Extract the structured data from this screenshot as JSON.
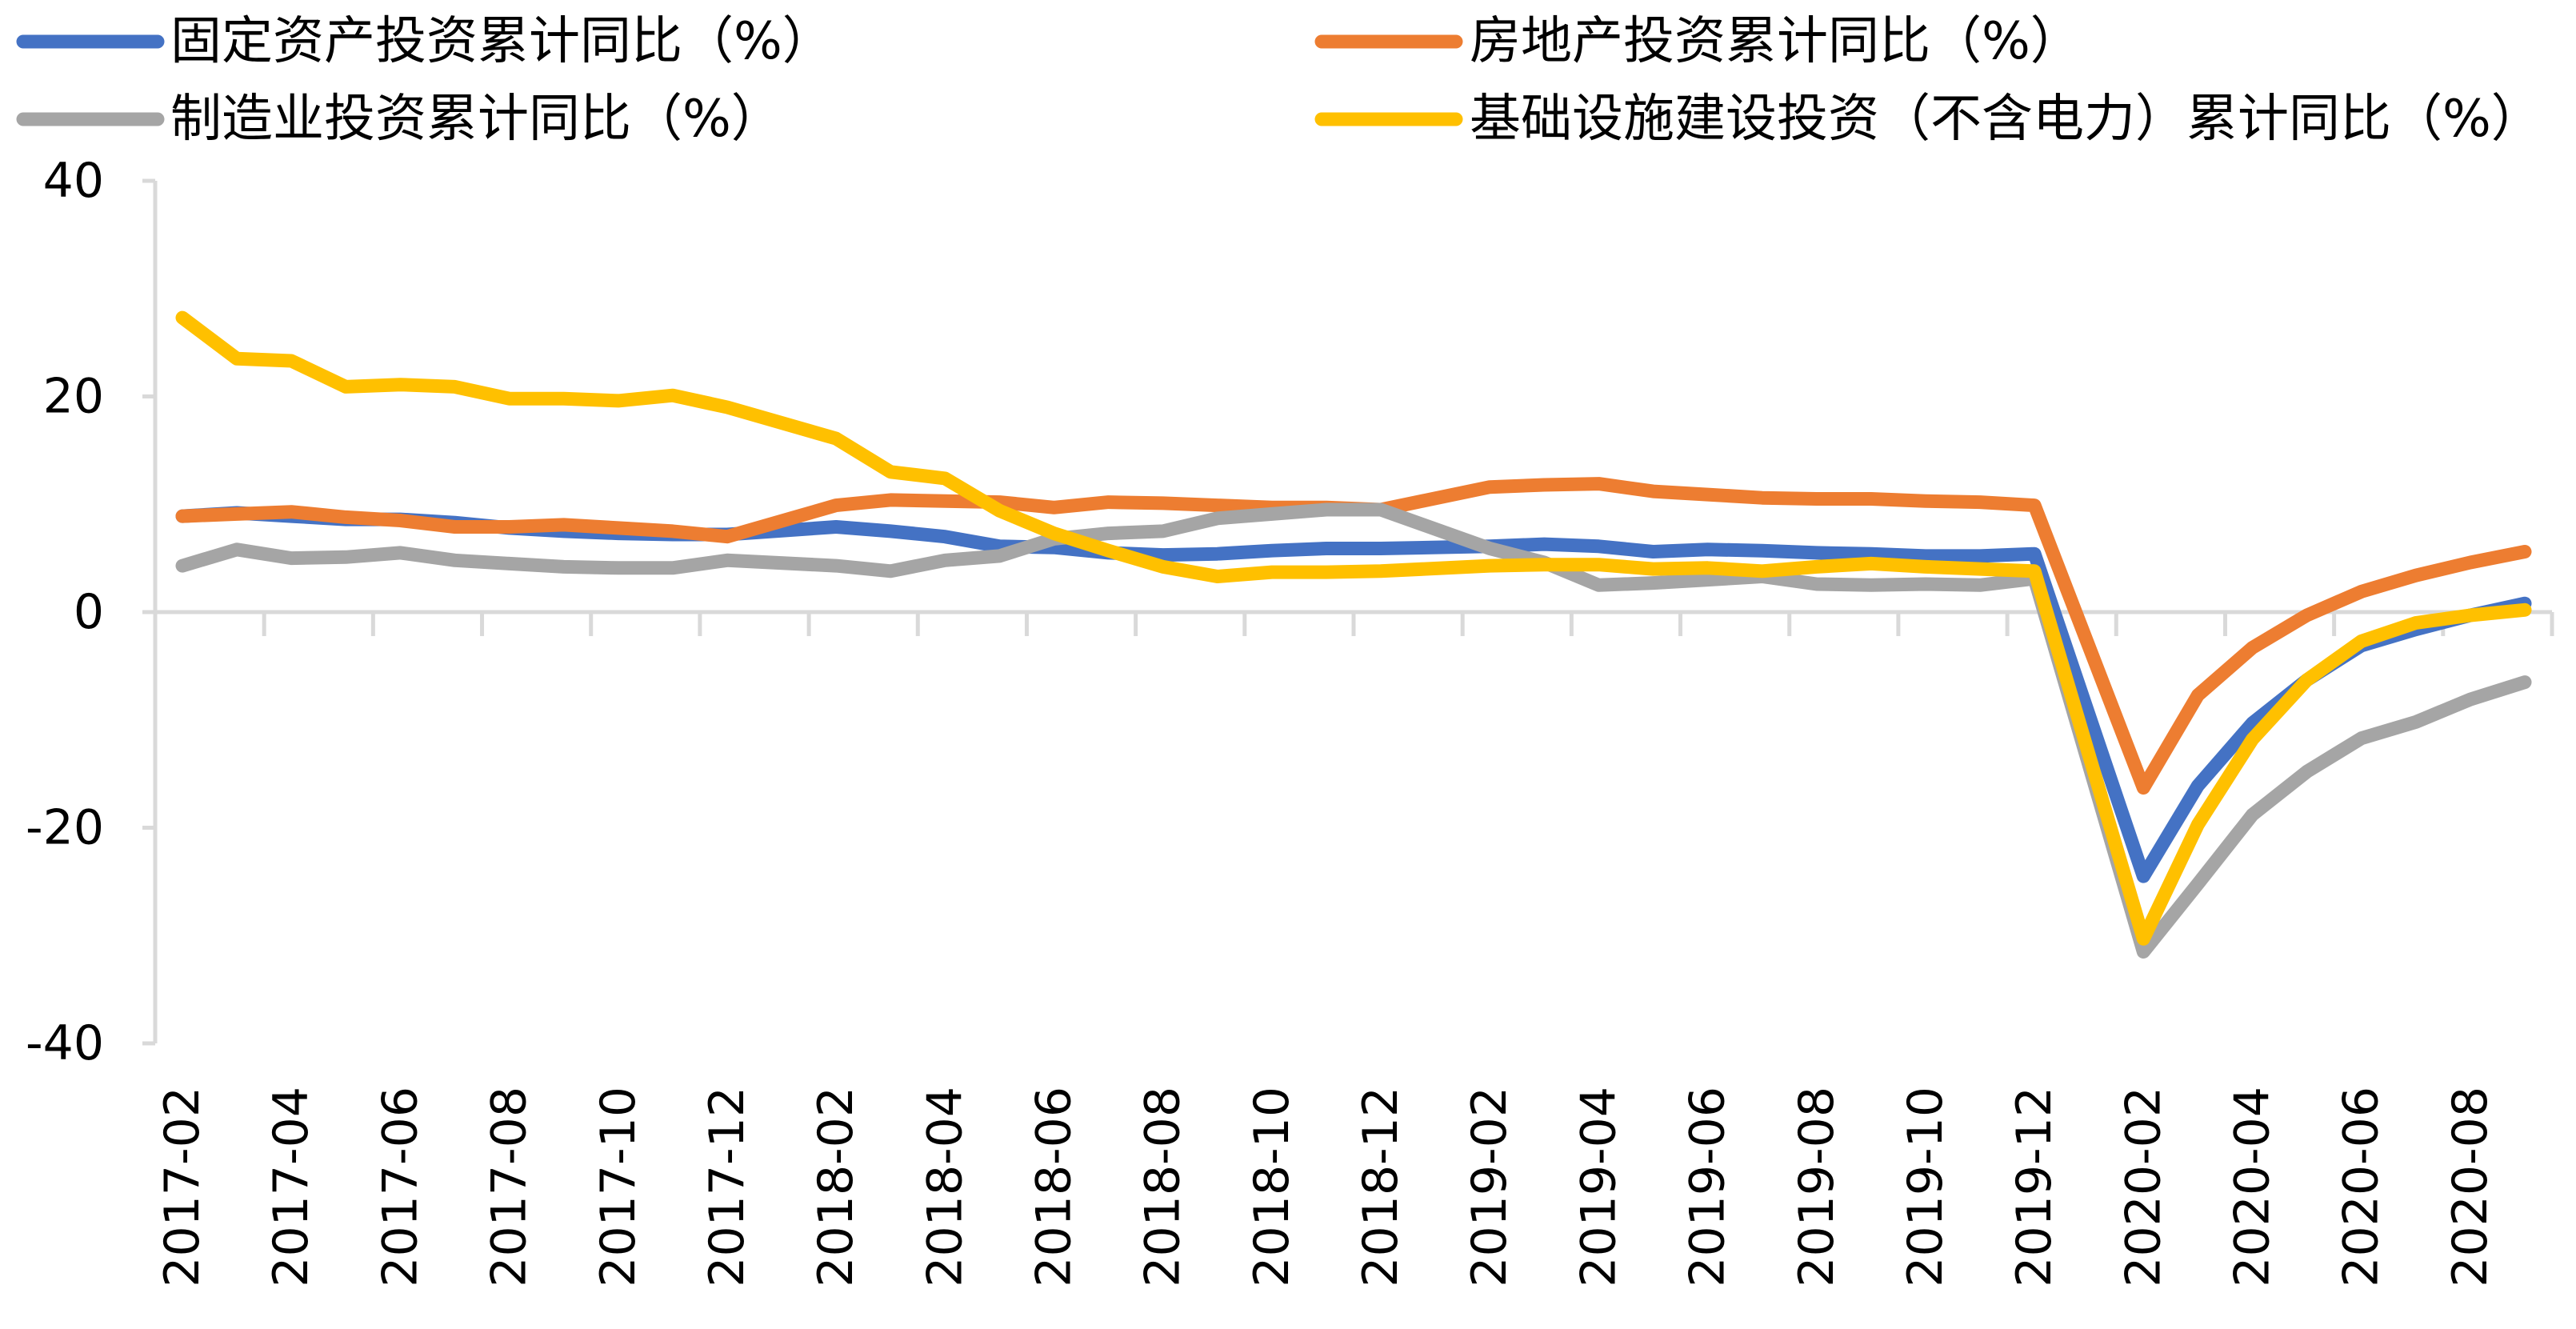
{
  "chart_data": {
    "type": "line",
    "title": "",
    "xlabel": "",
    "ylabel": "",
    "ylim": [
      -40,
      40
    ],
    "yticks": [
      40,
      20,
      0,
      -20,
      -40
    ],
    "grid": false,
    "legend_position": "top",
    "x": [
      "2017-02",
      "2017-03",
      "2017-04",
      "2017-05",
      "2017-06",
      "2017-07",
      "2017-08",
      "2017-09",
      "2017-10",
      "2017-11",
      "2017-12",
      "2018-01",
      "2018-02",
      "2018-03",
      "2018-04",
      "2018-05",
      "2018-06",
      "2018-07",
      "2018-08",
      "2018-09",
      "2018-10",
      "2018-11",
      "2018-12",
      "2019-01",
      "2019-02",
      "2019-03",
      "2019-04",
      "2019-05",
      "2019-06",
      "2019-07",
      "2019-08",
      "2019-09",
      "2019-10",
      "2019-11",
      "2019-12",
      "2020-01",
      "2020-02",
      "2020-03",
      "2020-04",
      "2020-05",
      "2020-06",
      "2020-07",
      "2020-08",
      "2020-09"
    ],
    "xtick_labels": [
      "2017-02",
      "2017-04",
      "2017-06",
      "2017-08",
      "2017-10",
      "2017-12",
      "2018-02",
      "2018-04",
      "2018-06",
      "2018-08",
      "2018-10",
      "2018-12",
      "2019-02",
      "2019-04",
      "2019-06",
      "2019-08",
      "2019-10",
      "2019-12",
      "2020-02",
      "2020-04",
      "2020-06",
      "2020-08"
    ],
    "series": [
      {
        "name": "固定资产投资累计同比（%）",
        "color": "#4472C4",
        "values": [
          8.9,
          9.2,
          8.9,
          8.6,
          8.6,
          8.3,
          7.8,
          7.5,
          7.3,
          7.2,
          7.2,
          null,
          7.9,
          7.5,
          7.0,
          6.1,
          6.0,
          5.5,
          5.3,
          5.4,
          5.7,
          5.9,
          5.9,
          null,
          6.1,
          6.3,
          6.1,
          5.6,
          5.8,
          5.7,
          5.5,
          5.4,
          5.2,
          5.2,
          5.4,
          null,
          -24.5,
          -16.1,
          -10.3,
          -6.3,
          -3.1,
          -1.6,
          -0.3,
          0.8
        ]
      },
      {
        "name": "房地产投资累计同比（%）",
        "color": "#ED7D31",
        "values": [
          8.9,
          9.1,
          9.3,
          8.8,
          8.5,
          7.9,
          7.9,
          8.1,
          7.8,
          7.5,
          7.0,
          null,
          9.9,
          10.4,
          10.3,
          10.2,
          9.7,
          10.2,
          10.1,
          9.9,
          9.7,
          9.7,
          9.5,
          null,
          11.6,
          11.8,
          11.9,
          11.2,
          10.9,
          10.6,
          10.5,
          10.5,
          10.3,
          10.2,
          9.9,
          null,
          -16.3,
          -7.7,
          -3.3,
          -0.3,
          1.9,
          3.4,
          4.6,
          5.6
        ]
      },
      {
        "name": "制造业投资累计同比（%）",
        "color": "#A5A5A5",
        "values": [
          4.3,
          5.8,
          5.0,
          5.1,
          5.5,
          4.8,
          4.5,
          4.2,
          4.1,
          4.1,
          4.8,
          null,
          4.3,
          3.8,
          4.8,
          5.2,
          6.8,
          7.3,
          7.5,
          8.7,
          9.1,
          9.5,
          9.5,
          null,
          5.9,
          4.6,
          2.5,
          2.7,
          3.0,
          3.3,
          2.6,
          2.5,
          2.6,
          2.5,
          3.1,
          null,
          -31.5,
          -25.2,
          -18.8,
          -14.8,
          -11.7,
          -10.2,
          -8.1,
          -6.5
        ]
      },
      {
        "name": "基础设施建设投资（不含电力）累计同比（%）",
        "color": "#FFC000",
        "values": [
          27.3,
          23.5,
          23.3,
          20.9,
          21.1,
          20.9,
          19.8,
          19.8,
          19.6,
          20.1,
          19.0,
          null,
          16.1,
          13.0,
          12.4,
          9.4,
          7.3,
          5.7,
          4.2,
          3.3,
          3.7,
          3.7,
          3.8,
          null,
          4.3,
          4.4,
          4.4,
          4.0,
          4.1,
          3.8,
          4.2,
          4.5,
          4.2,
          4.0,
          3.8,
          null,
          -30.3,
          -19.7,
          -11.8,
          -6.3,
          -2.7,
          -1.0,
          -0.3,
          0.2
        ]
      }
    ]
  }
}
